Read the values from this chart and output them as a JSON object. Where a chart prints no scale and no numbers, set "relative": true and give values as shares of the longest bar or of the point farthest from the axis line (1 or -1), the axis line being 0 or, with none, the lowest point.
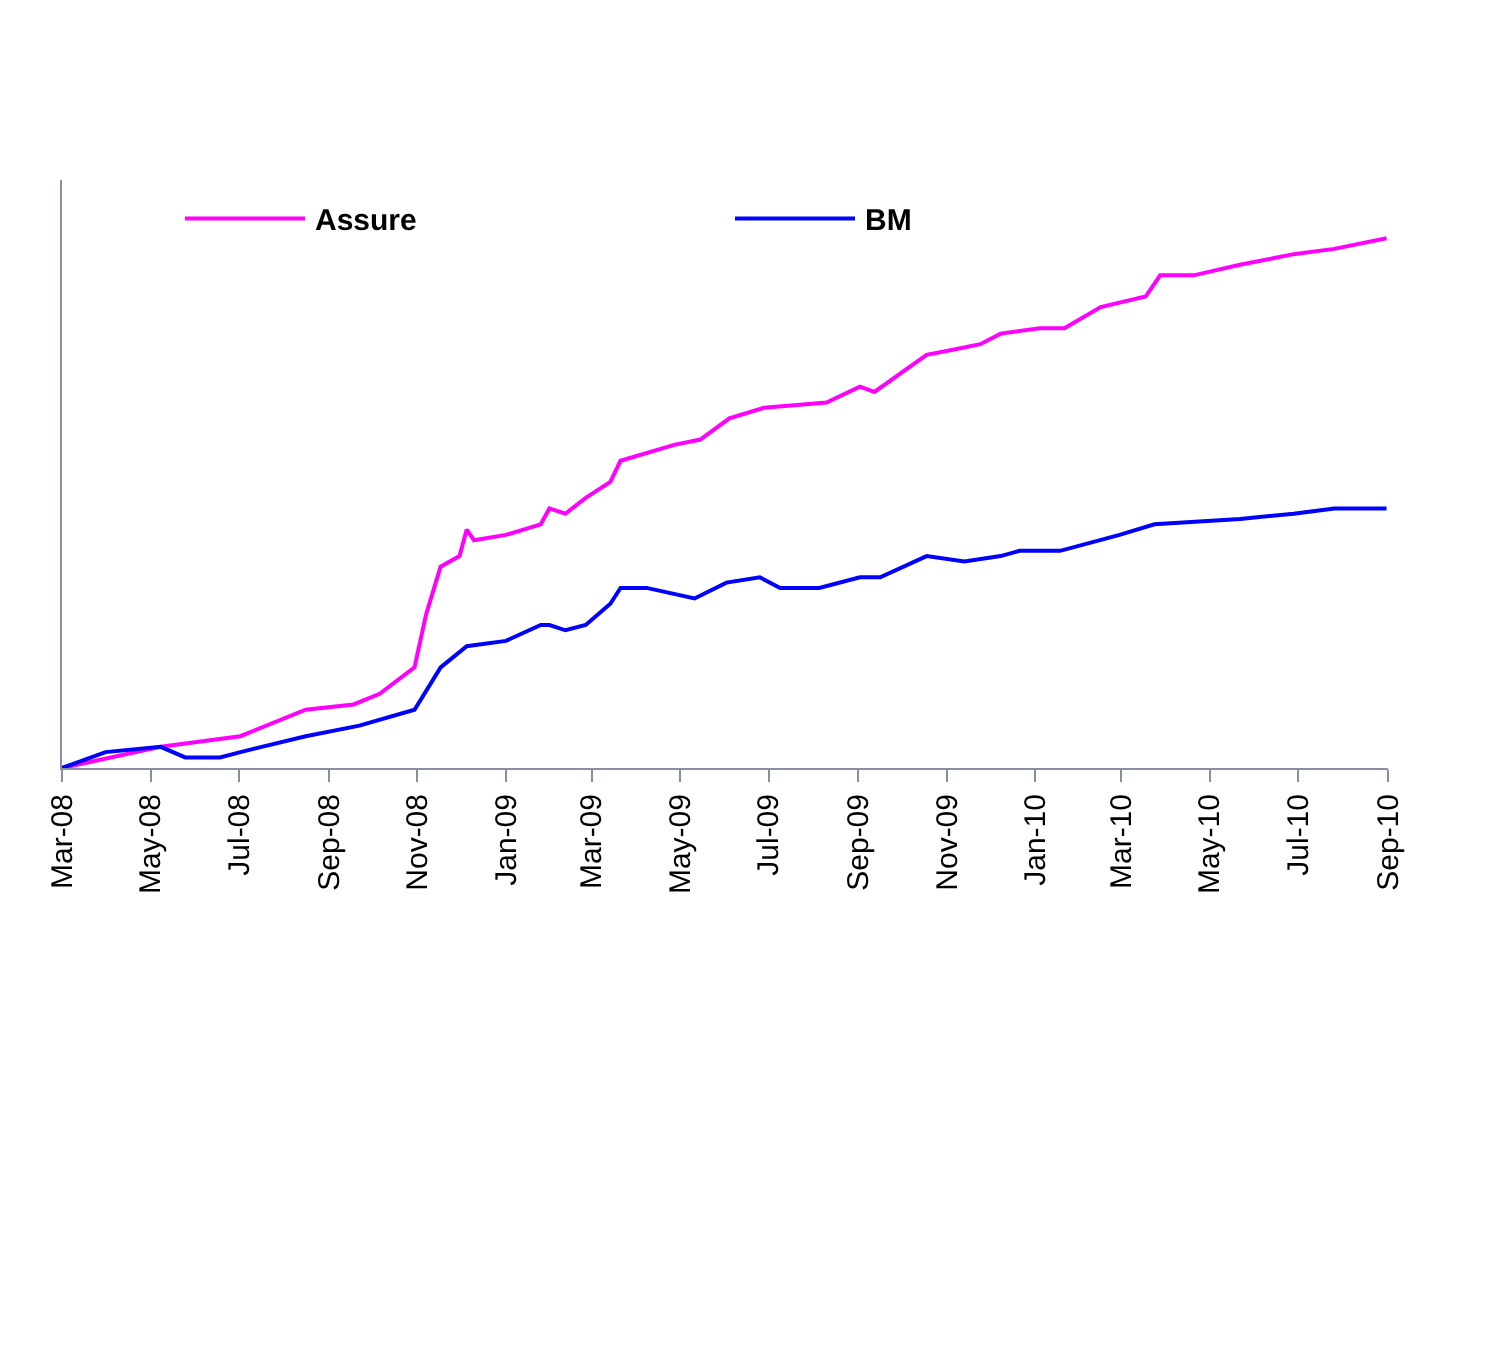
{
  "chart_data": {
    "type": "line",
    "relative": true,
    "legend": "top",
    "marker": "none",
    "line_style": "solid",
    "xlim": [
      "2008-03-01",
      "2010-09-01"
    ],
    "xticks": [
      {
        "value": "2008-03-01",
        "label": "Mar-08"
      },
      {
        "value": "2008-05-01",
        "label": "May-08"
      },
      {
        "value": "2008-07-01",
        "label": "Jul-08"
      },
      {
        "value": "2008-09-01",
        "label": "Sep-08"
      },
      {
        "value": "2008-11-01",
        "label": "Nov-08"
      },
      {
        "value": "2009-01-01",
        "label": "Jan-09"
      },
      {
        "value": "2009-03-01",
        "label": "Mar-09"
      },
      {
        "value": "2009-05-01",
        "label": "May-09"
      },
      {
        "value": "2009-07-01",
        "label": "Jul-09"
      },
      {
        "value": "2009-09-01",
        "label": "Sep-09"
      },
      {
        "value": "2009-11-01",
        "label": "Nov-09"
      },
      {
        "value": "2010-01-01",
        "label": "Jan-10"
      },
      {
        "value": "2010-03-01",
        "label": "Mar-10"
      },
      {
        "value": "2010-05-01",
        "label": "May-10"
      },
      {
        "value": "2010-07-01",
        "label": "Jul-10"
      },
      {
        "value": "2010-09-01",
        "label": "Sep-10"
      }
    ],
    "series": [
      {
        "name": "Assure",
        "color": "#ff00ff",
        "x": [
          "2008-03-01",
          "2008-05-08",
          "2008-07-02",
          "2008-08-16",
          "2008-09-18",
          "2008-10-06",
          "2008-10-30",
          "2008-11-07",
          "2008-11-17",
          "2008-11-30",
          "2008-12-05",
          "2008-12-10",
          "2009-01-01",
          "2009-01-25",
          "2009-01-31",
          "2009-02-11",
          "2009-02-25",
          "2009-03-14",
          "2009-03-21",
          "2009-04-27",
          "2009-05-15",
          "2009-06-04",
          "2009-06-28",
          "2009-08-10",
          "2009-09-02",
          "2009-09-12",
          "2009-10-18",
          "2009-11-06",
          "2009-11-24",
          "2009-12-08",
          "2010-01-04",
          "2010-01-21",
          "2010-02-15",
          "2010-03-18",
          "2010-03-28",
          "2010-04-20",
          "2010-05-22",
          "2010-06-28",
          "2010-07-26",
          "2010-08-31"
        ],
        "values": [
          0,
          0.04,
          0.06,
          0.11,
          0.12,
          0.14,
          0.19,
          0.29,
          0.38,
          0.4,
          0.45,
          0.43,
          0.44,
          0.46,
          0.49,
          0.48,
          0.51,
          0.54,
          0.58,
          0.61,
          0.62,
          0.66,
          0.68,
          0.69,
          0.72,
          0.71,
          0.78,
          0.79,
          0.8,
          0.82,
          0.83,
          0.83,
          0.87,
          0.89,
          0.93,
          0.93,
          0.95,
          0.97,
          0.98,
          1
        ]
      },
      {
        "name": "BM",
        "color": "#0000ff",
        "x": [
          "2008-03-01",
          "2008-03-31",
          "2008-05-08",
          "2008-05-25",
          "2008-06-18",
          "2008-07-02",
          "2008-08-16",
          "2008-09-22",
          "2008-10-30",
          "2008-11-17",
          "2008-12-05",
          "2009-01-01",
          "2009-01-25",
          "2009-01-31",
          "2009-02-11",
          "2009-02-25",
          "2009-03-14",
          "2009-03-21",
          "2009-04-08",
          "2009-05-11",
          "2009-06-02",
          "2009-06-25",
          "2009-07-09",
          "2009-08-05",
          "2009-09-02",
          "2009-09-16",
          "2009-10-18",
          "2009-11-13",
          "2009-12-08",
          "2009-12-21",
          "2010-01-18",
          "2010-02-28",
          "2010-03-24",
          "2010-05-22",
          "2010-06-28",
          "2010-07-26",
          "2010-08-31"
        ],
        "values": [
          0,
          0.03,
          0.04,
          0.02,
          0.02,
          0.03,
          0.06,
          0.08,
          0.11,
          0.19,
          0.23,
          0.24,
          0.27,
          0.27,
          0.26,
          0.27,
          0.31,
          0.34,
          0.34,
          0.32,
          0.35,
          0.36,
          0.34,
          0.34,
          0.36,
          0.36,
          0.4,
          0.39,
          0.4,
          0.41,
          0.41,
          0.44,
          0.46,
          0.47,
          0.48,
          0.49,
          0.49
        ]
      }
    ]
  }
}
